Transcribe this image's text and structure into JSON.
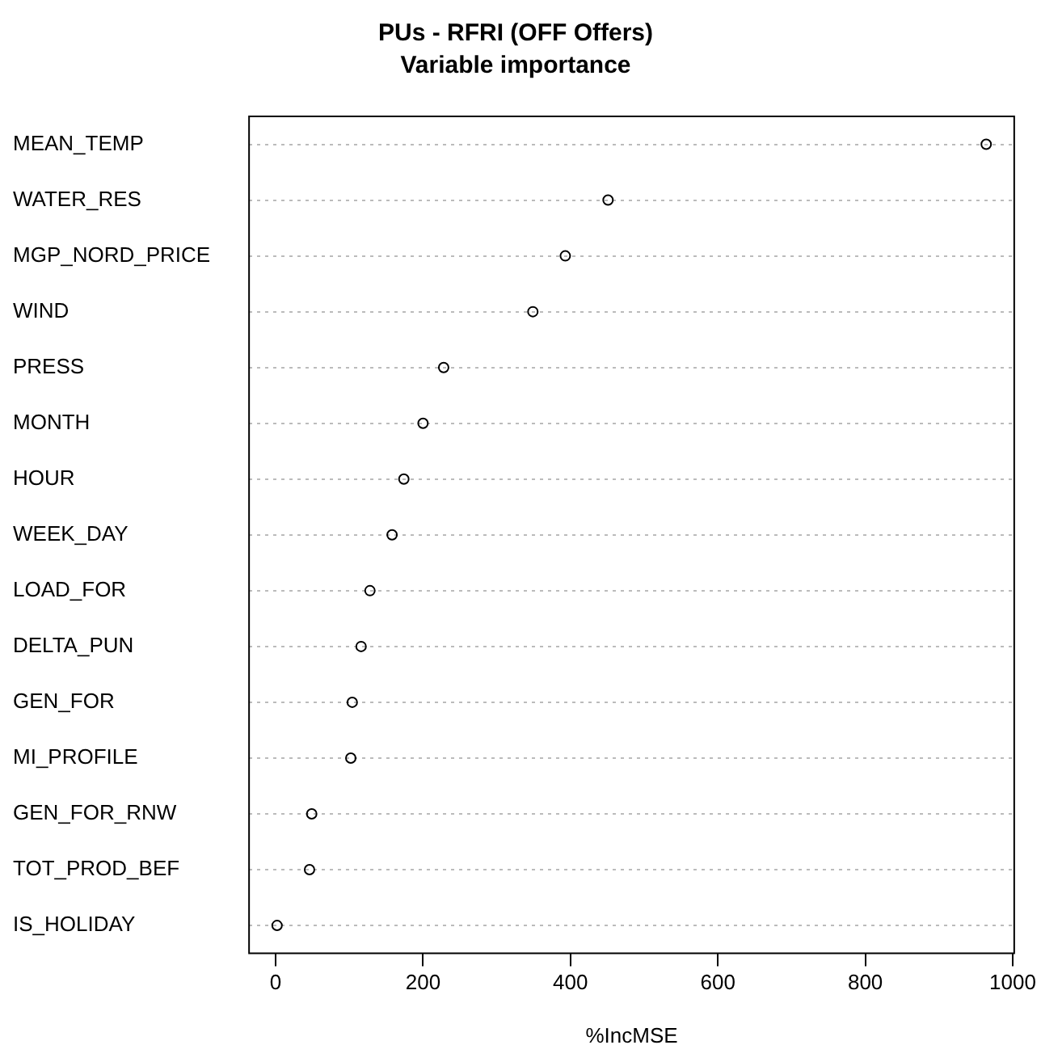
{
  "chart_data": {
    "type": "scatter",
    "title": "PUs - RFRI (OFF Offers)",
    "subtitle": "Variable importance",
    "xlabel": "%IncMSE",
    "categories": [
      "MEAN_TEMP",
      "WATER_RES",
      "MGP_NORD_PRICE",
      "WIND",
      "PRESS",
      "MONTH",
      "HOUR",
      "WEEK_DAY",
      "LOAD_FOR",
      "DELTA_PUN",
      "GEN_FOR",
      "MI_PROFILE",
      "GEN_FOR_RNW",
      "TOT_PROD_BEF",
      "IS_HOLIDAY"
    ],
    "values": [
      964,
      451,
      393,
      349,
      228,
      200,
      174,
      158,
      128,
      116,
      104,
      102,
      49,
      46,
      2
    ],
    "color": "#000000",
    "marker": "circle",
    "orientation": "horizontal",
    "grid": "y",
    "legend": false,
    "xlim": [
      -36,
      1002
    ],
    "xticks": [
      0,
      200,
      400,
      600,
      800,
      1000
    ]
  }
}
